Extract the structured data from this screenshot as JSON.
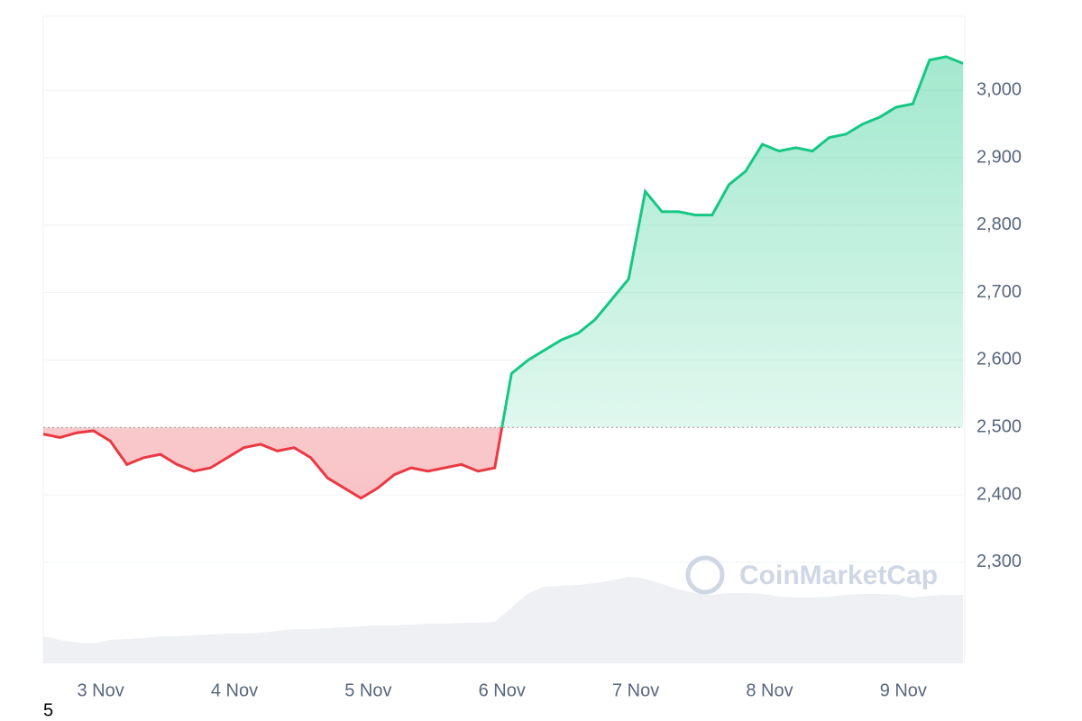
{
  "chart_data": {
    "type": "line",
    "categories": [
      null,
      null,
      null,
      "3 Nov",
      null,
      null,
      null,
      null,
      null,
      null,
      null,
      "4 Nov",
      null,
      null,
      null,
      null,
      null,
      null,
      null,
      "5 Nov",
      null,
      null,
      null,
      null,
      null,
      null,
      null,
      "6 Nov",
      null,
      null,
      null,
      null,
      null,
      null,
      null,
      "7 Nov",
      null,
      null,
      null,
      null,
      null,
      null,
      null,
      "8 Nov",
      null,
      null,
      null,
      null,
      null,
      null,
      null,
      "9 Nov",
      null,
      null,
      null,
      null
    ],
    "series": [
      {
        "values": [
          2490,
          2485,
          2492,
          2495,
          2480,
          2445,
          2455,
          2460,
          2445,
          2435,
          2440,
          2455,
          2470,
          2475,
          2465,
          2470,
          2455,
          2425,
          2410,
          2395,
          2410,
          2430,
          2440,
          2435,
          2440,
          2445,
          2435,
          2440,
          2580,
          2600,
          2615,
          2630,
          2640,
          2660,
          2690,
          2720,
          2850,
          2820,
          2820,
          2815,
          2815,
          2860,
          2880,
          2920,
          2910,
          2915,
          2910,
          2930,
          2935,
          2950,
          2960,
          2975,
          2980,
          3045,
          3050,
          3040
        ]
      }
    ],
    "baseline": 2500,
    "up_color": "#16c784",
    "down_color": "#ea3943",
    "ylim": [
      2150,
      3110
    ],
    "yticks": [
      {
        "value": 2300,
        "label": "2,300"
      },
      {
        "value": 2400,
        "label": "2,400"
      },
      {
        "value": 2500,
        "label": "2,500"
      },
      {
        "value": 2600,
        "label": "2,600"
      },
      {
        "value": 2700,
        "label": "2,700"
      },
      {
        "value": 2800,
        "label": "2,800"
      },
      {
        "value": 2900,
        "label": "2,900"
      },
      {
        "value": 3000,
        "label": "3,000"
      }
    ],
    "grid": true,
    "volume": {
      "color": "#eef0f3",
      "vlim": [
        0,
        100
      ],
      "values": [
        30,
        26,
        23,
        22,
        26,
        27,
        28,
        30,
        30,
        31,
        32,
        33,
        33,
        34,
        36,
        38,
        38,
        39,
        40,
        41,
        42,
        42,
        43,
        44,
        44,
        45,
        45,
        46,
        62,
        78,
        85,
        86,
        87,
        89,
        92,
        96,
        94,
        88,
        82,
        78,
        76,
        78,
        78,
        77,
        74,
        73,
        73,
        74,
        76,
        77,
        77,
        76,
        73,
        75,
        76,
        76
      ]
    },
    "watermark": "CoinMarketCap"
  },
  "page_label": "5"
}
